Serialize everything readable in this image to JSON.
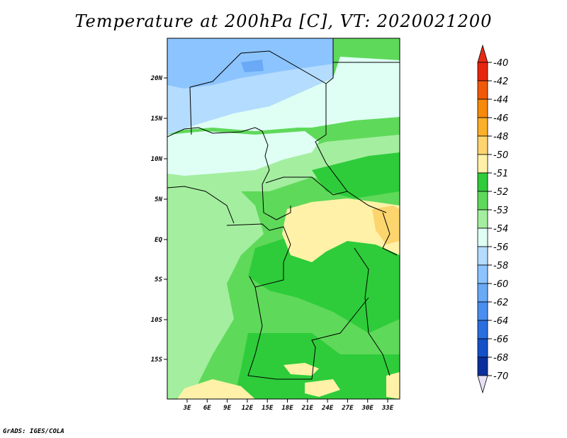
{
  "title": "Temperature at 200hPa [C], VT: 2020021200",
  "credit": "GrADS: IGES/COLA",
  "map": {
    "lat_labels": [
      "20N",
      "15N",
      "10N",
      "5N",
      "EQ",
      "5S",
      "10S",
      "15S"
    ],
    "lon_labels": [
      "3E",
      "6E",
      "9E",
      "12E",
      "15E",
      "18E",
      "21E",
      "24E",
      "27E",
      "30E",
      "33E"
    ]
  },
  "legend": {
    "labels": [
      "-40",
      "-42",
      "-44",
      "-46",
      "-48",
      "-50",
      "-51",
      "-52",
      "-53",
      "-54",
      "-56",
      "-58",
      "-60",
      "-62",
      "-64",
      "-66",
      "-68",
      "-70"
    ],
    "colors": [
      "#e8250e",
      "#f05a0a",
      "#f7890b",
      "#fbb02a",
      "#fcd56e",
      "#fff2a8",
      "#2ecc3a",
      "#5fd95a",
      "#a4eea0",
      "#dffff5",
      "#b4dcff",
      "#8cc4ff",
      "#69a9f5",
      "#4a8ef0",
      "#2a6fe0",
      "#1450c8",
      "#0a2f9c",
      "#e6e0f5"
    ],
    "tip_top_color": "#e82a14",
    "tip_bottom_color": "#e6e0f5"
  }
}
